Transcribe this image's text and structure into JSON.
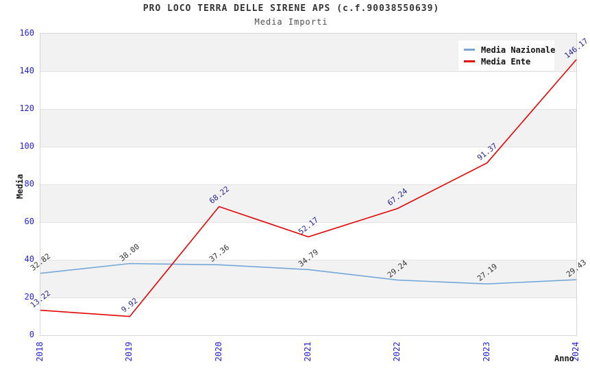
{
  "header": {
    "title": "PRO LOCO TERRA DELLE SIRENE APS (c.f.90038550639)",
    "subtitle": "Media Importi"
  },
  "chart_data": {
    "type": "line",
    "x": [
      "2018",
      "2019",
      "2020",
      "2021",
      "2022",
      "2023",
      "2024"
    ],
    "series": [
      {
        "name": "Media Nazionale",
        "color": "#74a7d8",
        "label_color": "#333333",
        "values": [
          32.82,
          38.0,
          37.36,
          34.79,
          29.24,
          27.19,
          29.43
        ]
      },
      {
        "name": "Media Ente",
        "color": "#e60000",
        "label_color": "#26269c",
        "values": [
          13.22,
          9.92,
          68.22,
          52.17,
          67.24,
          91.37,
          146.17
        ]
      }
    ],
    "xlabel": "Anno",
    "ylabel": "Media",
    "ylim": [
      0,
      160
    ],
    "ytick_step": 20,
    "tick_color": "#2222dd",
    "band_colors": [
      "#f2f2f2",
      "#ffffff"
    ],
    "grid": "horizontal",
    "legend_position": "top-right",
    "point_labels_visible": true
  }
}
